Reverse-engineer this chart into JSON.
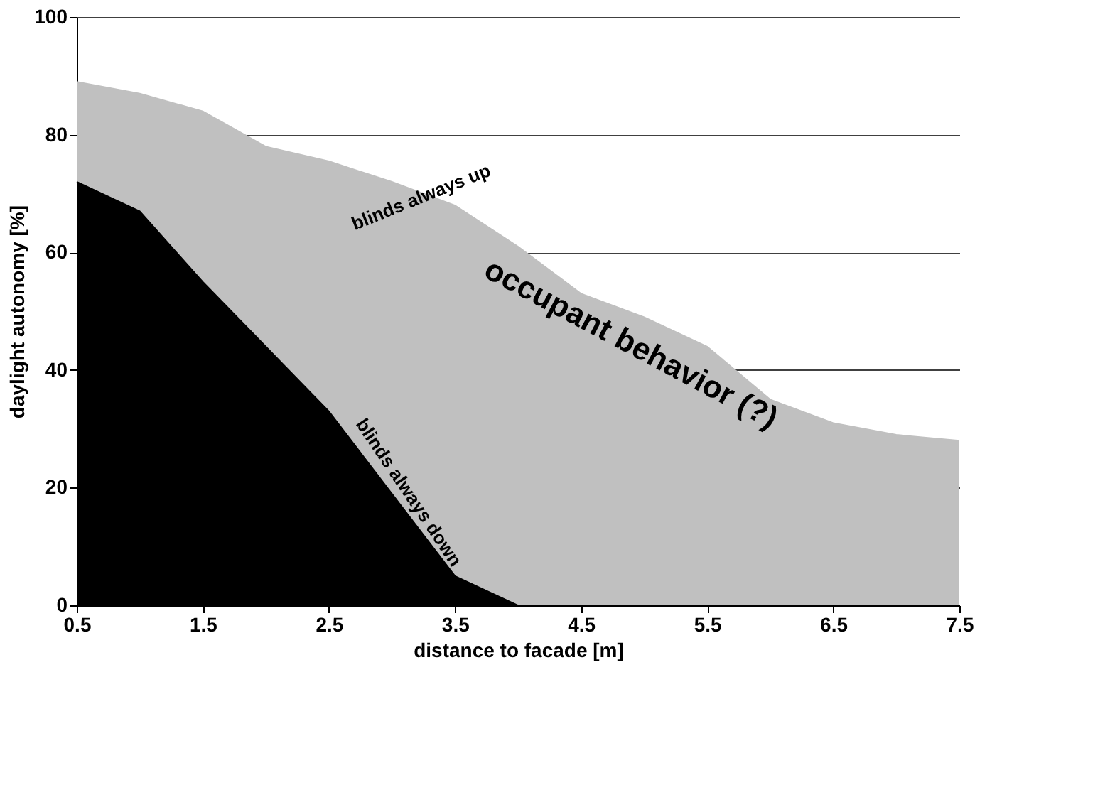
{
  "chart_data": {
    "type": "area",
    "xlabel": "distance to facade [m]",
    "ylabel": "daylight autonomy [%]",
    "x": [
      0.5,
      1.0,
      1.5,
      2.0,
      2.5,
      3.0,
      3.5,
      4.0,
      4.5,
      5.0,
      5.5,
      6.0,
      6.5,
      7.0,
      7.5
    ],
    "series": [
      {
        "name": "blinds always up",
        "color": "#c0c0c0",
        "values": [
          89,
          87,
          84,
          78,
          75.5,
          72,
          68,
          61,
          53,
          49,
          44,
          35,
          31,
          29,
          28
        ]
      },
      {
        "name": "blinds always down",
        "color": "#000000",
        "values": [
          72,
          67,
          55,
          44,
          33,
          19,
          5,
          0,
          0,
          0,
          0,
          0,
          0,
          0,
          0
        ]
      }
    ],
    "annotations": [
      "occupant behavior (?)"
    ],
    "xlim": [
      0.5,
      7.5
    ],
    "xticks": [
      0.5,
      1.5,
      2.5,
      3.5,
      4.5,
      5.5,
      6.5,
      7.5
    ],
    "ylim": [
      0,
      100
    ],
    "yticks": [
      0,
      20,
      40,
      60,
      80,
      100
    ],
    "grid": "y"
  }
}
